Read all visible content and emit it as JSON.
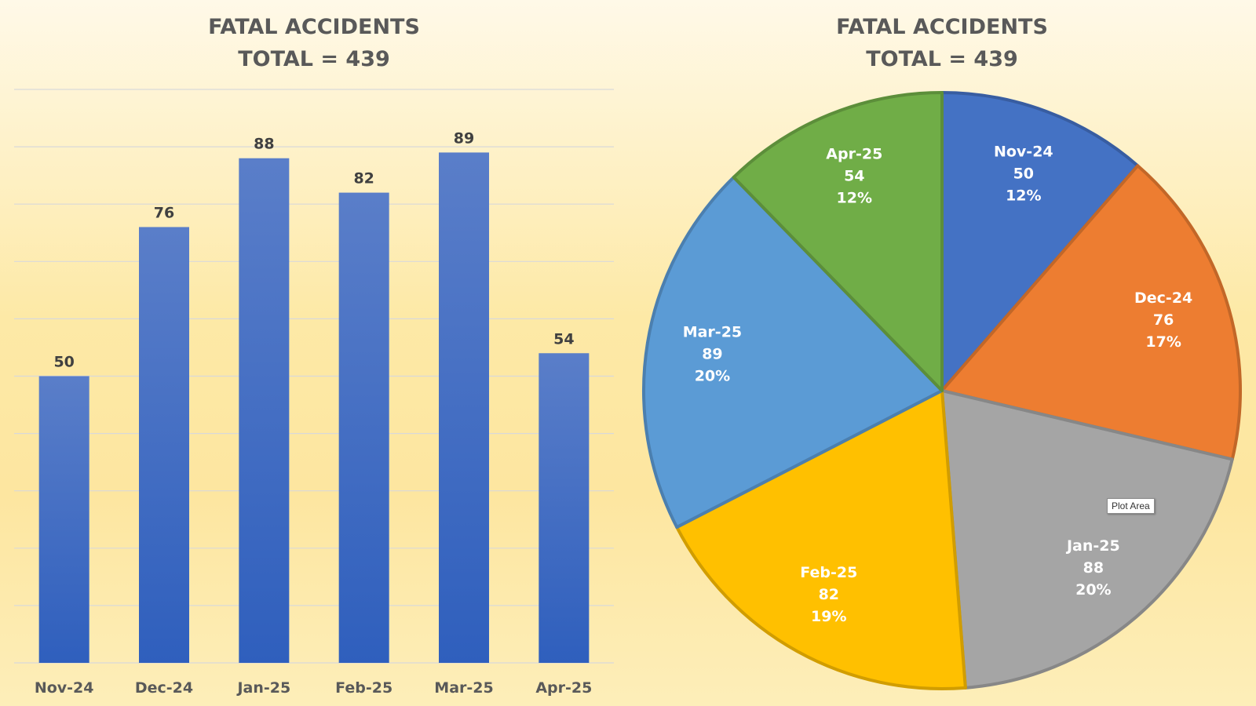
{
  "chart_data": [
    {
      "type": "bar",
      "title": "FATAL ACCIDENTS",
      "subtitle": "TOTAL = 439",
      "categories": [
        "Nov-24",
        "Dec-24",
        "Jan-25",
        "Feb-25",
        "Mar-25",
        "Apr-25"
      ],
      "values": [
        50,
        76,
        88,
        82,
        89,
        54
      ],
      "ylim": [
        0,
        100
      ],
      "grid": true,
      "colors": {
        "bar_top": "#5a7ec9",
        "bar_bottom": "#2f5fbd",
        "grid": "#d9d9d9",
        "label": "#404040",
        "tick": "#595959"
      }
    },
    {
      "type": "pie",
      "title": "FATAL ACCIDENTS",
      "subtitle": "TOTAL = 439",
      "slices": [
        {
          "label": "Nov-24",
          "value": 50,
          "percent": "12%",
          "color": "#4472c4"
        },
        {
          "label": "Dec-24",
          "value": 76,
          "percent": "17%",
          "color": "#ed7d31"
        },
        {
          "label": "Jan-25",
          "value": 88,
          "percent": "20%",
          "color": "#a5a5a5"
        },
        {
          "label": "Feb-25",
          "value": 82,
          "percent": "19%",
          "color": "#ffc000"
        },
        {
          "label": "Mar-25",
          "value": 89,
          "percent": "20%",
          "color": "#5b9bd5"
        },
        {
          "label": "Apr-25",
          "value": 54,
          "percent": "12%",
          "color": "#70ad47"
        }
      ]
    }
  ],
  "tooltip": {
    "text": "Plot Area"
  }
}
